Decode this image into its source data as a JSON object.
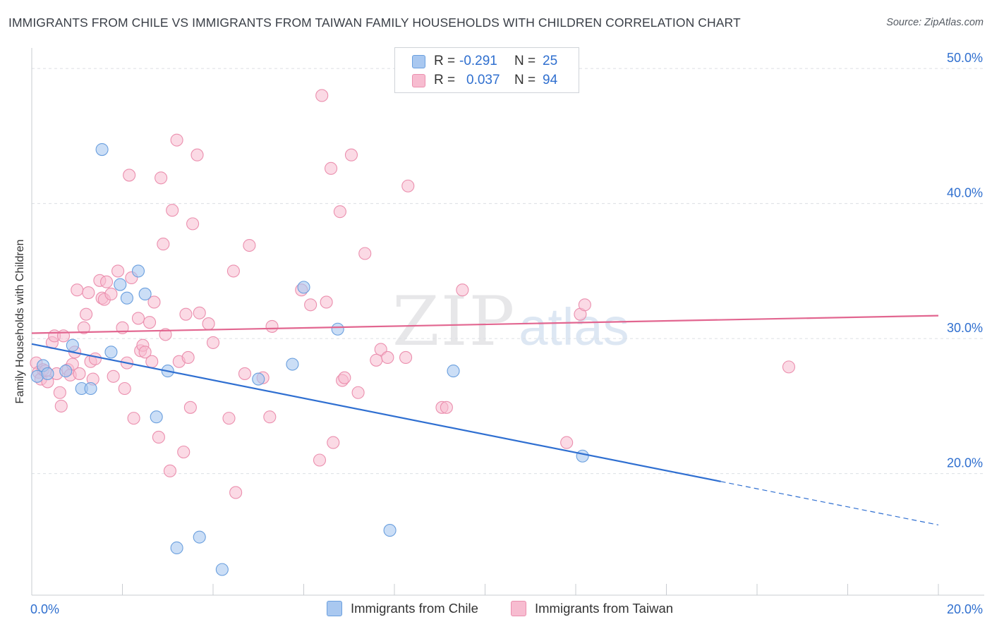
{
  "header": {
    "title": "IMMIGRANTS FROM CHILE VS IMMIGRANTS FROM TAIWAN FAMILY HOUSEHOLDS WITH CHILDREN CORRELATION CHART",
    "source": "Source: ZipAtlas.com"
  },
  "watermark": {
    "part1": "ZIP",
    "part2": "atlas"
  },
  "legend": {
    "rows": [
      {
        "r_label": "R =",
        "r_value": "-0.291",
        "n_label": "N =",
        "n_value": "25"
      },
      {
        "r_label": "R =",
        "r_value": "0.037",
        "n_label": "N =",
        "n_value": "94"
      }
    ]
  },
  "colors": {
    "chile_fill": "#a9c8f0",
    "chile_stroke": "#6a9fde",
    "chile_line": "#2f6fd1",
    "taiwan_fill": "#f7bcd0",
    "taiwan_stroke": "#eb8fae",
    "taiwan_line": "#e26690",
    "axis_text": "#2f6fcf",
    "grid": "#dcdfe4"
  },
  "chart_data": {
    "type": "scatter",
    "title": "IMMIGRANTS FROM CHILE VS IMMIGRANTS FROM TAIWAN FAMILY HOUSEHOLDS WITH CHILDREN CORRELATION CHART",
    "xlabel": "",
    "ylabel": "Family Households with Children",
    "xlim": [
      0,
      20
    ],
    "ylim": [
      11,
      51
    ],
    "x_tick_labels": [
      "0.0%",
      "20.0%"
    ],
    "y_ticks": [
      20,
      30,
      40,
      50
    ],
    "y_tick_labels": [
      "20.0%",
      "30.0%",
      "40.0%",
      "50.0%"
    ],
    "grid": true,
    "legend_position": "bottom",
    "series": [
      {
        "name": "Immigrants from Chile",
        "r": -0.291,
        "n": 25,
        "trend": {
          "x0": 0,
          "y0": 29.6,
          "x1": 20,
          "y1": 16.2,
          "solid_until_x": 15.2
        },
        "points": [
          [
            0.12,
            27.2
          ],
          [
            0.25,
            28.0
          ],
          [
            0.35,
            27.4
          ],
          [
            0.75,
            27.6
          ],
          [
            0.9,
            29.5
          ],
          [
            1.1,
            26.3
          ],
          [
            1.3,
            26.3
          ],
          [
            1.55,
            44.0
          ],
          [
            1.75,
            29.0
          ],
          [
            1.95,
            34.0
          ],
          [
            2.1,
            33.0
          ],
          [
            2.35,
            35.0
          ],
          [
            2.5,
            33.3
          ],
          [
            2.75,
            24.2
          ],
          [
            3.0,
            27.6
          ],
          [
            3.2,
            14.5
          ],
          [
            3.7,
            15.3
          ],
          [
            4.2,
            12.9
          ],
          [
            5.0,
            27.0
          ],
          [
            6.0,
            33.8
          ],
          [
            5.75,
            28.1
          ],
          [
            6.75,
            30.7
          ],
          [
            7.9,
            15.8
          ],
          [
            9.3,
            27.6
          ],
          [
            12.15,
            21.3
          ]
        ]
      },
      {
        "name": "Immigrants from Taiwan",
        "r": 0.037,
        "n": 94,
        "trend": {
          "x0": 0,
          "y0": 30.4,
          "x1": 20,
          "y1": 31.7
        },
        "points": [
          [
            0.1,
            28.2
          ],
          [
            0.15,
            27.5
          ],
          [
            0.2,
            27.0
          ],
          [
            0.25,
            27.7
          ],
          [
            0.3,
            27.6
          ],
          [
            0.35,
            26.8
          ],
          [
            0.45,
            29.7
          ],
          [
            0.5,
            30.2
          ],
          [
            0.55,
            27.4
          ],
          [
            0.62,
            26.0
          ],
          [
            0.65,
            25.0
          ],
          [
            0.7,
            30.2
          ],
          [
            0.8,
            27.7
          ],
          [
            0.85,
            27.3
          ],
          [
            0.9,
            28.1
          ],
          [
            0.95,
            29.0
          ],
          [
            1.0,
            33.6
          ],
          [
            1.05,
            27.4
          ],
          [
            1.15,
            30.8
          ],
          [
            1.2,
            31.8
          ],
          [
            1.25,
            33.4
          ],
          [
            1.3,
            28.3
          ],
          [
            1.4,
            28.5
          ],
          [
            1.5,
            34.3
          ],
          [
            1.55,
            33.0
          ],
          [
            1.6,
            32.9
          ],
          [
            1.65,
            34.2
          ],
          [
            1.75,
            33.3
          ],
          [
            1.8,
            27.2
          ],
          [
            1.9,
            35.0
          ],
          [
            2.0,
            30.8
          ],
          [
            2.05,
            26.3
          ],
          [
            2.1,
            28.2
          ],
          [
            2.15,
            42.1
          ],
          [
            2.2,
            34.5
          ],
          [
            2.25,
            24.1
          ],
          [
            2.35,
            31.5
          ],
          [
            2.4,
            29.1
          ],
          [
            2.45,
            29.5
          ],
          [
            2.5,
            29.0
          ],
          [
            2.6,
            31.2
          ],
          [
            2.65,
            28.3
          ],
          [
            2.7,
            32.7
          ],
          [
            2.8,
            22.7
          ],
          [
            2.85,
            41.9
          ],
          [
            2.9,
            37.0
          ],
          [
            2.95,
            30.3
          ],
          [
            3.05,
            20.2
          ],
          [
            3.1,
            39.5
          ],
          [
            3.2,
            44.7
          ],
          [
            3.25,
            28.3
          ],
          [
            3.35,
            21.6
          ],
          [
            3.4,
            31.8
          ],
          [
            3.45,
            28.6
          ],
          [
            3.5,
            24.9
          ],
          [
            3.55,
            38.5
          ],
          [
            3.65,
            43.6
          ],
          [
            3.7,
            31.9
          ],
          [
            3.9,
            31.1
          ],
          [
            4.0,
            29.7
          ],
          [
            4.35,
            24.1
          ],
          [
            4.45,
            35.0
          ],
          [
            4.5,
            18.6
          ],
          [
            4.7,
            27.4
          ],
          [
            4.8,
            36.9
          ],
          [
            5.1,
            27.1
          ],
          [
            5.25,
            24.2
          ],
          [
            5.95,
            33.6
          ],
          [
            6.15,
            32.5
          ],
          [
            6.35,
            21.0
          ],
          [
            6.4,
            48.0
          ],
          [
            6.5,
            32.7
          ],
          [
            6.6,
            42.6
          ],
          [
            6.65,
            22.3
          ],
          [
            6.8,
            39.4
          ],
          [
            6.85,
            26.9
          ],
          [
            6.9,
            27.1
          ],
          [
            7.05,
            43.6
          ],
          [
            7.2,
            26.0
          ],
          [
            7.35,
            36.3
          ],
          [
            7.6,
            28.4
          ],
          [
            7.7,
            29.2
          ],
          [
            7.85,
            28.6
          ],
          [
            8.25,
            28.6
          ],
          [
            8.3,
            41.3
          ],
          [
            9.05,
            24.9
          ],
          [
            9.15,
            24.9
          ],
          [
            11.8,
            22.3
          ],
          [
            12.1,
            31.8
          ],
          [
            12.2,
            32.5
          ],
          [
            16.7,
            27.9
          ],
          [
            9.5,
            33.6
          ],
          [
            5.3,
            30.9
          ],
          [
            1.35,
            27.0
          ]
        ]
      }
    ]
  },
  "bottom_legend": {
    "chile": "Immigrants from Chile",
    "taiwan": "Immigrants from Taiwan"
  }
}
